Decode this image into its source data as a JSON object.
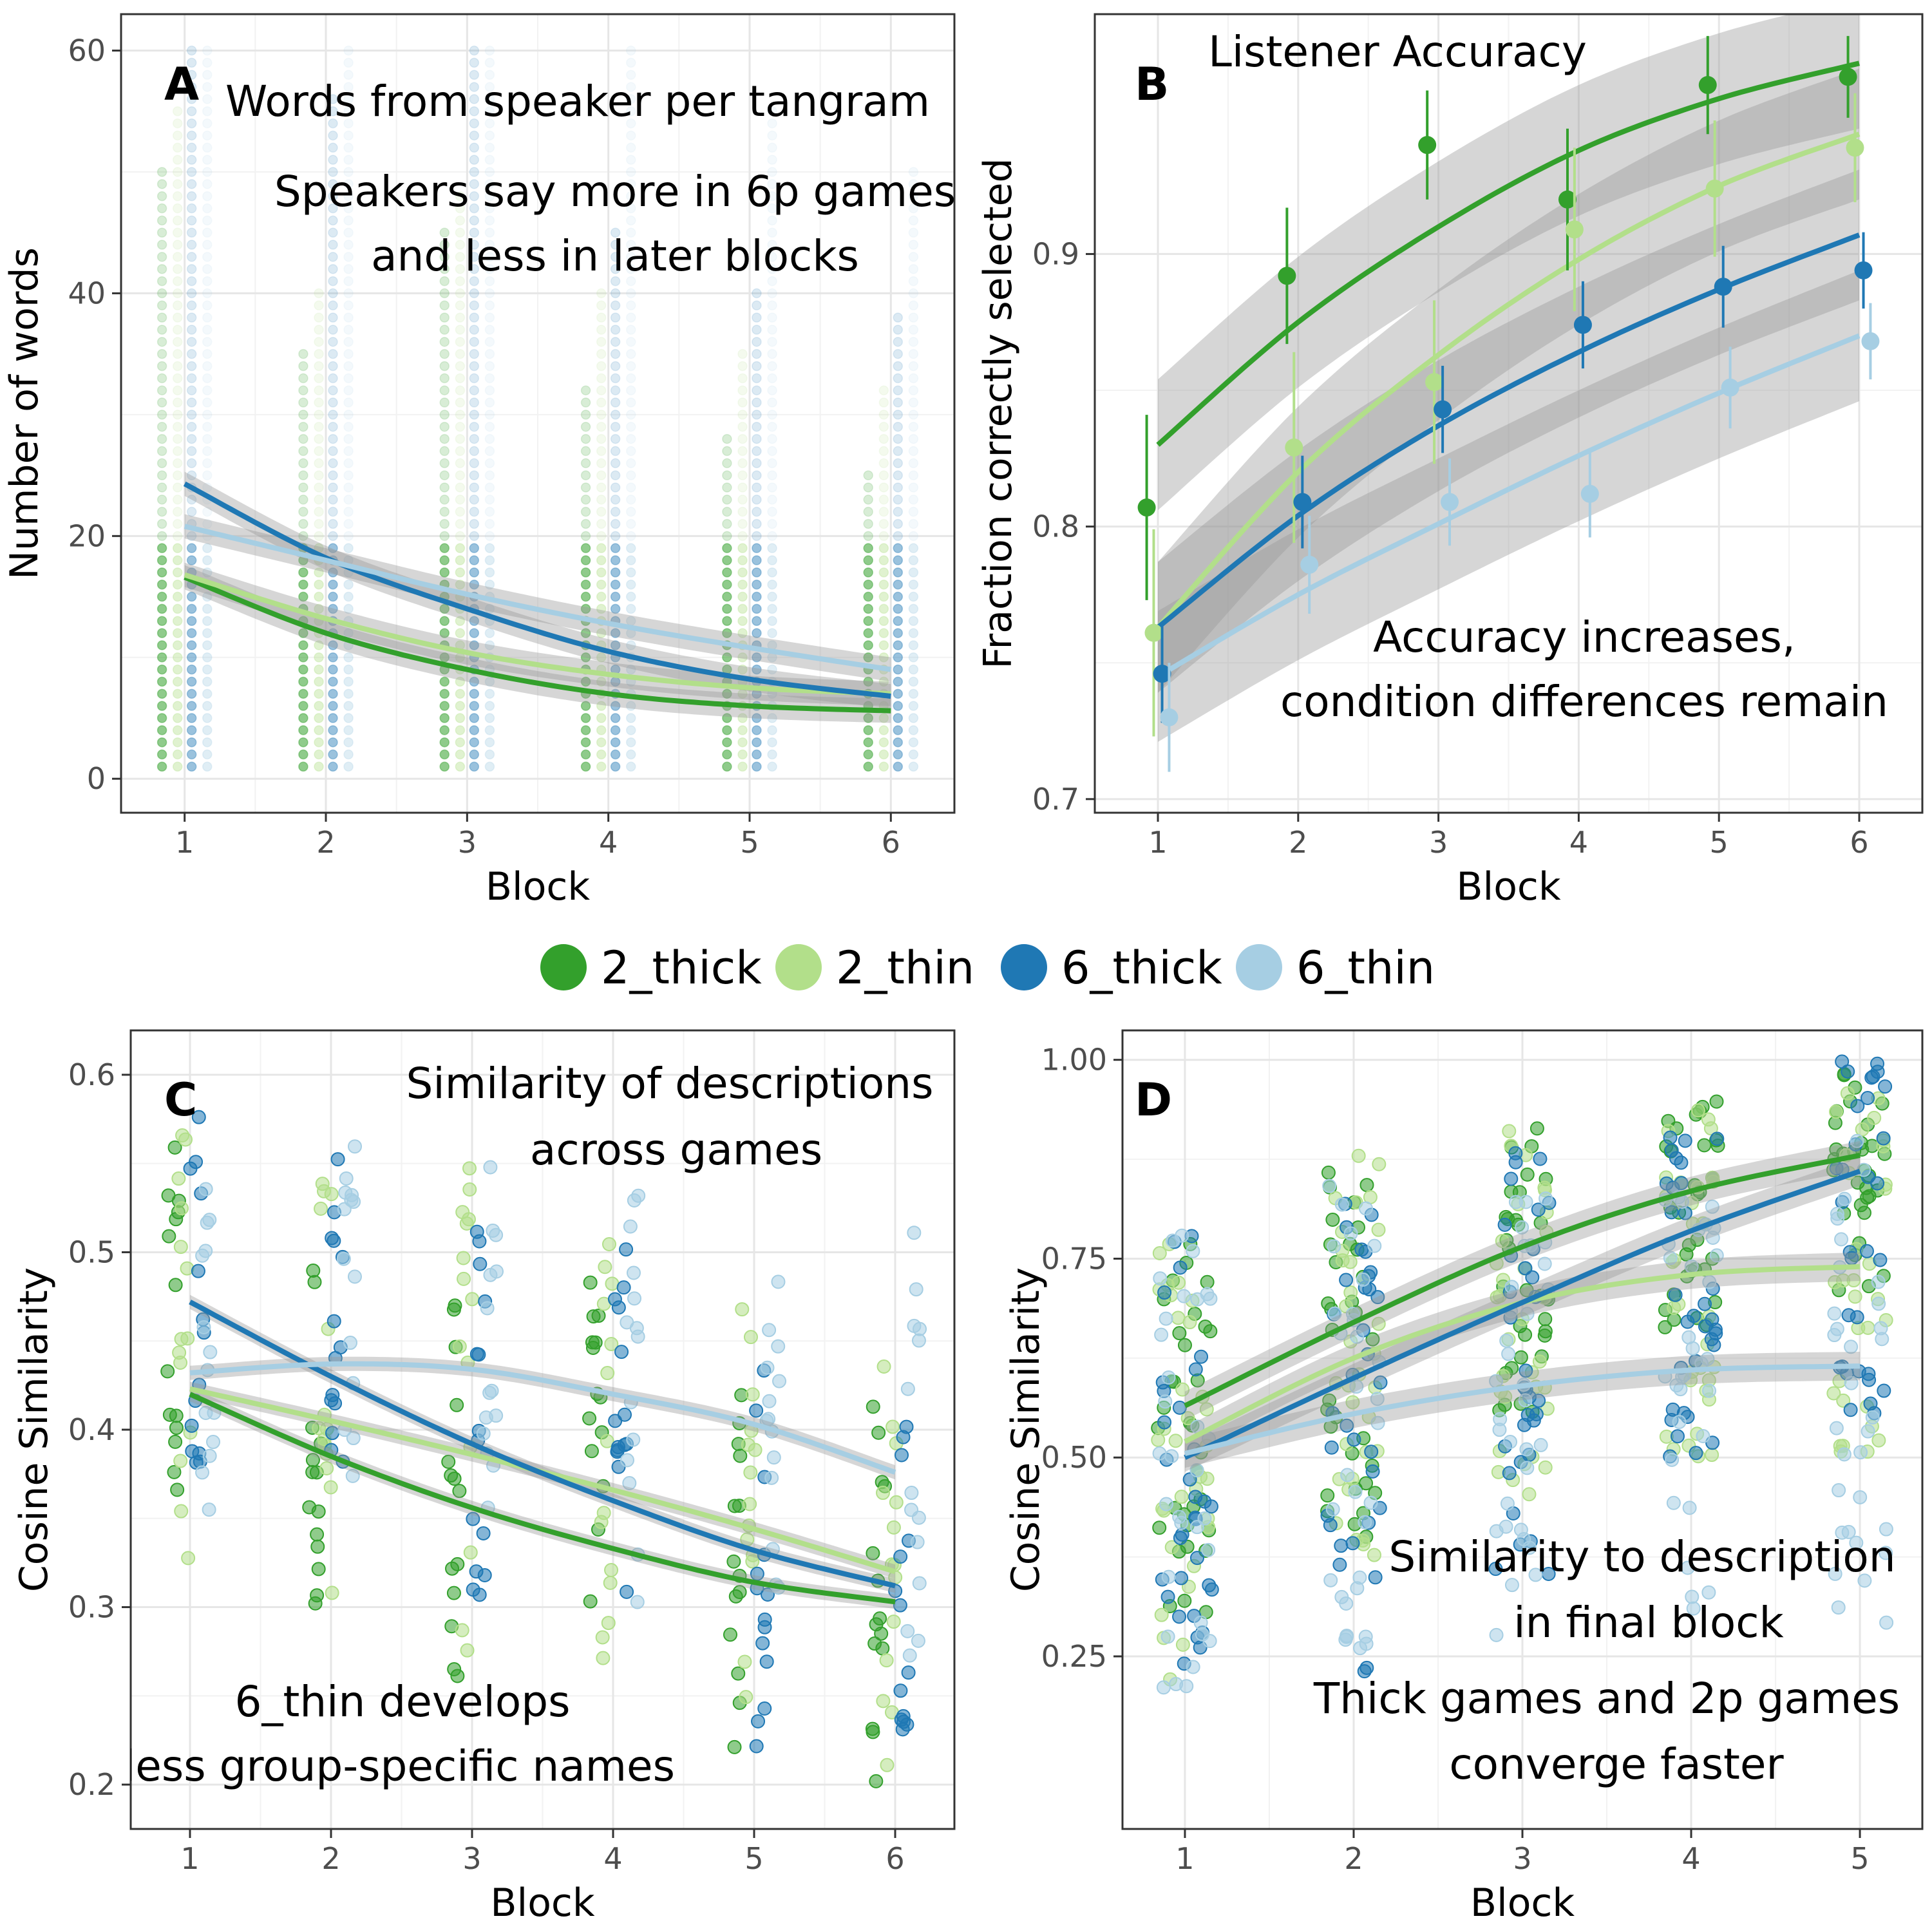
{
  "legend": {
    "placement": "center",
    "items": [
      {
        "label": "2_thick",
        "color": "#33a02c"
      },
      {
        "label": "2_thin",
        "color": "#b2df8a"
      },
      {
        "label": "6_thick",
        "color": "#1f78b4"
      },
      {
        "label": "6_thin",
        "color": "#a6cee3"
      }
    ]
  },
  "chart_data": [
    {
      "panel": "A",
      "type": "scatter",
      "title_lines": [
        "Words from speaker per tangram"
      ],
      "annotation_lines": [
        "Speakers say more in 6p games",
        "and less in later blocks"
      ],
      "xlabel": "Block",
      "ylabel": "Number of words",
      "xlim": [
        0.55,
        6.45
      ],
      "ylim": [
        -2.8,
        63
      ],
      "xticks": [
        1,
        2,
        3,
        4,
        5,
        6
      ],
      "yticks": [
        0,
        20,
        40,
        60
      ],
      "grid": true,
      "series": [
        {
          "name": "2_thick",
          "x": [
            1,
            2,
            3,
            4,
            5,
            6
          ],
          "y": [
            16.6,
            12.0,
            9.0,
            7.0,
            6.0,
            5.6
          ]
        },
        {
          "name": "2_thin",
          "x": [
            1,
            2,
            3,
            4,
            5,
            6
          ],
          "y": [
            16.8,
            13.2,
            10.4,
            8.6,
            7.5,
            7.0
          ]
        },
        {
          "name": "6_thick",
          "x": [
            1,
            2,
            3,
            4,
            5,
            6
          ],
          "y": [
            24.3,
            18.2,
            14.0,
            10.5,
            8.2,
            6.8
          ]
        },
        {
          "name": "6_thin",
          "x": [
            1,
            2,
            3,
            4,
            5,
            6
          ],
          "y": [
            20.8,
            18.0,
            15.2,
            12.8,
            10.8,
            9.0
          ]
        }
      ],
      "raw_points": {
        "2_thick": {
          "x_offset": -0.16,
          "max": [
            50,
            35,
            45,
            32,
            28,
            25
          ],
          "opacity": 0.55
        },
        "2_thin": {
          "x_offset": -0.05,
          "max": [
            55,
            40,
            48,
            40,
            35,
            32
          ],
          "opacity": 0.4
        },
        "6_thick": {
          "x_offset": 0.05,
          "max": [
            60,
            56,
            60,
            45,
            40,
            38
          ],
          "opacity": 0.45
        },
        "6_thin": {
          "x_offset": 0.16,
          "max": [
            60,
            60,
            60,
            60,
            55,
            50
          ],
          "opacity": 0.35
        }
      }
    },
    {
      "panel": "B",
      "type": "scatter",
      "title_lines": [
        "Listener Accuracy"
      ],
      "annotation_lines": [
        "Accuracy increases,",
        "condition differences remain"
      ],
      "xlabel": "Block",
      "ylabel": "Fraction correctly selected",
      "xlim": [
        0.55,
        6.45
      ],
      "ylim": [
        0.695,
        0.988
      ],
      "xticks": [
        1,
        2,
        3,
        4,
        5,
        6
      ],
      "yticks": [
        0.7,
        0.8,
        0.9
      ],
      "grid": true,
      "series": [
        {
          "name": "2_thick",
          "x": [
            1,
            2,
            3,
            4,
            5,
            6
          ],
          "y": [
            0.807,
            0.892,
            0.94,
            0.92,
            0.962,
            0.965
          ],
          "err": [
            0.034,
            0.025,
            0.02,
            0.026,
            0.018,
            0.015
          ],
          "fit": [
            0.83,
            0.875,
            0.91,
            0.938,
            0.957,
            0.97
          ]
        },
        {
          "name": "2_thin",
          "x": [
            1,
            2,
            3,
            4,
            5,
            6
          ],
          "y": [
            0.761,
            0.829,
            0.853,
            0.909,
            0.924,
            0.939
          ],
          "err": [
            0.038,
            0.035,
            0.03,
            0.03,
            0.025,
            0.02
          ],
          "fit": [
            0.763,
            0.82,
            0.863,
            0.898,
            0.925,
            0.944
          ]
        },
        {
          "name": "6_thick",
          "x": [
            1,
            2,
            3,
            4,
            5,
            6
          ],
          "y": [
            0.746,
            0.809,
            0.843,
            0.874,
            0.888,
            0.894
          ],
          "err": [
            0.018,
            0.017,
            0.016,
            0.016,
            0.015,
            0.014
          ],
          "fit": [
            0.763,
            0.804,
            0.837,
            0.864,
            0.887,
            0.907
          ]
        },
        {
          "name": "6_thin",
          "x": [
            1,
            2,
            3,
            4,
            5,
            6
          ],
          "y": [
            0.73,
            0.786,
            0.809,
            0.812,
            0.851,
            0.868
          ],
          "err": [
            0.02,
            0.018,
            0.016,
            0.016,
            0.015,
            0.014
          ],
          "fit": [
            0.745,
            0.775,
            0.801,
            0.826,
            0.849,
            0.87
          ]
        }
      ]
    },
    {
      "panel": "C",
      "type": "scatter",
      "title_lines": [
        "Similarity of descriptions",
        "across games"
      ],
      "annotation_lines": [
        "6_thin develops",
        "less group-specific names"
      ],
      "xlabel": "Block",
      "ylabel": "Cosine Similarity",
      "xlim": [
        0.58,
        6.42
      ],
      "ylim": [
        0.175,
        0.625
      ],
      "xticks": [
        1,
        2,
        3,
        4,
        5,
        6
      ],
      "yticks": [
        0.2,
        0.3,
        0.4,
        0.5,
        0.6
      ],
      "grid": true,
      "series": [
        {
          "name": "2_thick",
          "x": [
            1,
            2,
            3,
            4,
            5,
            6
          ],
          "y": [
            0.42,
            0.385,
            0.356,
            0.333,
            0.314,
            0.303
          ]
        },
        {
          "name": "2_thin",
          "x": [
            1,
            2,
            3,
            4,
            5,
            6
          ],
          "y": [
            0.423,
            0.405,
            0.386,
            0.366,
            0.344,
            0.32
          ]
        },
        {
          "name": "6_thick",
          "x": [
            1,
            2,
            3,
            4,
            5,
            6
          ],
          "y": [
            0.472,
            0.43,
            0.392,
            0.36,
            0.332,
            0.312
          ]
        },
        {
          "name": "6_thin",
          "x": [
            1,
            2,
            3,
            4,
            5,
            6
          ],
          "y": [
            0.432,
            0.437,
            0.434,
            0.42,
            0.403,
            0.376
          ]
        }
      ],
      "raw_points": {
        "2_thick": {
          "x_offset": -0.12,
          "range": [
            [
              0.32,
              0.56
            ],
            [
              0.28,
              0.52
            ],
            [
              0.26,
              0.48
            ],
            [
              0.24,
              0.5
            ],
            [
              0.22,
              0.42
            ],
            [
              0.2,
              0.44
            ]
          ]
        },
        "2_thin": {
          "x_offset": -0.04,
          "range": [
            [
              0.32,
              0.57
            ],
            [
              0.3,
              0.55
            ],
            [
              0.25,
              0.55
            ],
            [
              0.26,
              0.53
            ],
            [
              0.22,
              0.47
            ],
            [
              0.21,
              0.44
            ]
          ]
        },
        "6_thick": {
          "x_offset": 0.05,
          "range": [
            [
              0.37,
              0.58
            ],
            [
              0.36,
              0.57
            ],
            [
              0.3,
              0.52
            ],
            [
              0.28,
              0.51
            ],
            [
              0.22,
              0.45
            ],
            [
              0.23,
              0.44
            ]
          ]
        },
        "6_thin": {
          "x_offset": 0.13,
          "range": [
            [
              0.35,
              0.54
            ],
            [
              0.37,
              0.56
            ],
            [
              0.33,
              0.55
            ],
            [
              0.3,
              0.54
            ],
            [
              0.3,
              0.5
            ],
            [
              0.25,
              0.52
            ]
          ]
        }
      }
    },
    {
      "panel": "D",
      "type": "scatter",
      "title_lines": [],
      "annotation_lines": [
        "Similarity to description",
        "in final block",
        "Thick games and 2p games",
        "converge faster"
      ],
      "xlabel": "Block",
      "ylabel": "Cosine Similarity",
      "xlim": [
        0.63,
        5.37
      ],
      "ylim": [
        0.033,
        1.037
      ],
      "xticks": [
        1,
        2,
        3,
        4,
        5
      ],
      "yticks": [
        0.25,
        0.5,
        0.75,
        1.0
      ],
      "ytick_labels": [
        "0.25",
        "0.50",
        "0.75",
        "1.00"
      ],
      "grid": true,
      "series": [
        {
          "name": "2_thick",
          "x": [
            1,
            2,
            3,
            4,
            5
          ],
          "y": [
            0.565,
            0.67,
            0.765,
            0.835,
            0.88
          ]
        },
        {
          "name": "2_thin",
          "x": [
            1,
            2,
            3,
            4,
            5
          ],
          "y": [
            0.52,
            0.625,
            0.695,
            0.73,
            0.74
          ]
        },
        {
          "name": "6_thick",
          "x": [
            1,
            2,
            3,
            4,
            5
          ],
          "y": [
            0.5,
            0.6,
            0.695,
            0.785,
            0.86
          ]
        },
        {
          "name": "6_thin",
          "x": [
            1,
            2,
            3,
            4,
            5
          ],
          "y": [
            0.505,
            0.555,
            0.59,
            0.61,
            0.615
          ]
        }
      ],
      "raw_points": {
        "2_thick": {
          "range": [
            [
              0.3,
              0.8
            ],
            [
              0.4,
              0.9
            ],
            [
              0.55,
              0.93
            ],
            [
              0.65,
              0.96
            ],
            [
              0.7,
              0.99
            ]
          ]
        },
        "2_thin": {
          "range": [
            [
              0.22,
              0.8
            ],
            [
              0.35,
              0.9
            ],
            [
              0.45,
              0.93
            ],
            [
              0.5,
              0.95
            ],
            [
              0.5,
              0.96
            ]
          ]
        },
        "6_thick": {
          "range": [
            [
              0.24,
              0.8
            ],
            [
              0.22,
              0.88
            ],
            [
              0.35,
              0.93
            ],
            [
              0.5,
              0.96
            ],
            [
              0.55,
              1.0
            ]
          ]
        },
        "6_thin": {
          "range": [
            [
              0.21,
              0.8
            ],
            [
              0.25,
              0.85
            ],
            [
              0.22,
              0.86
            ],
            [
              0.3,
              0.9
            ],
            [
              0.23,
              0.9
            ]
          ]
        }
      }
    }
  ]
}
